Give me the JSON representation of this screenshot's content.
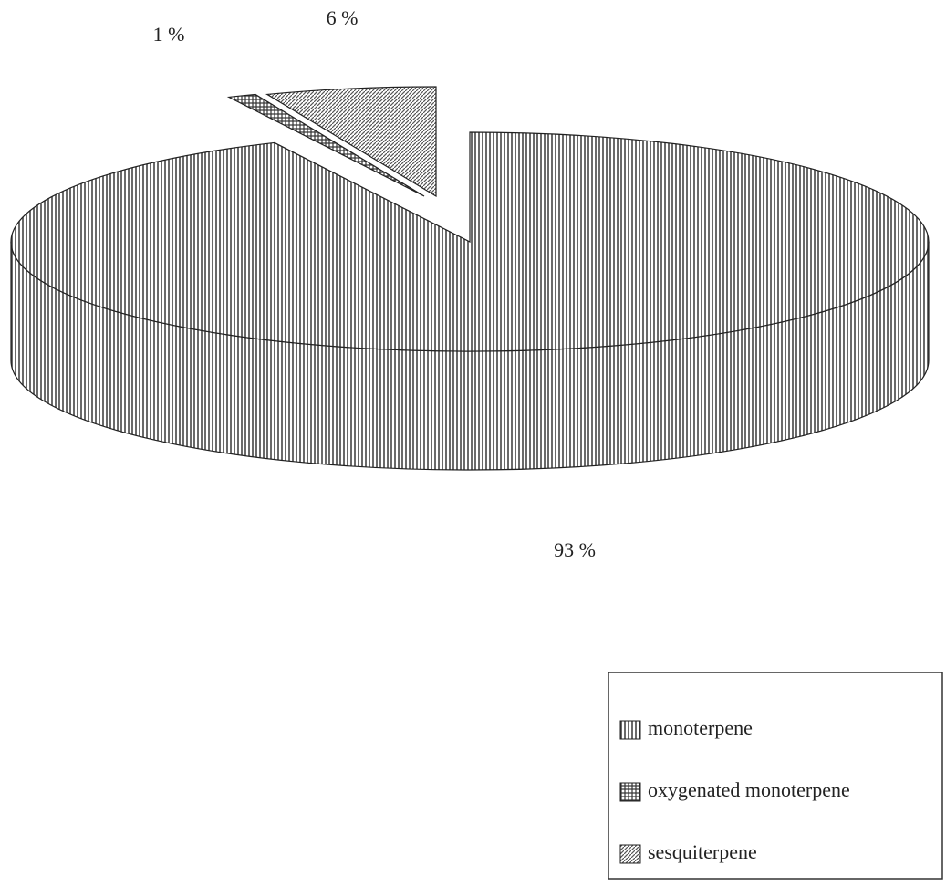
{
  "chart_data": {
    "type": "pie",
    "categories": [
      "monoterpene",
      "oxygenated monoterpene",
      "sesquiterpene"
    ],
    "values": [
      93,
      1,
      6
    ],
    "value_labels": [
      "93 %",
      "1 %",
      "6 %"
    ],
    "colors": [
      "#444444",
      "#333333",
      "#555555"
    ],
    "legend": "bottom-right"
  }
}
